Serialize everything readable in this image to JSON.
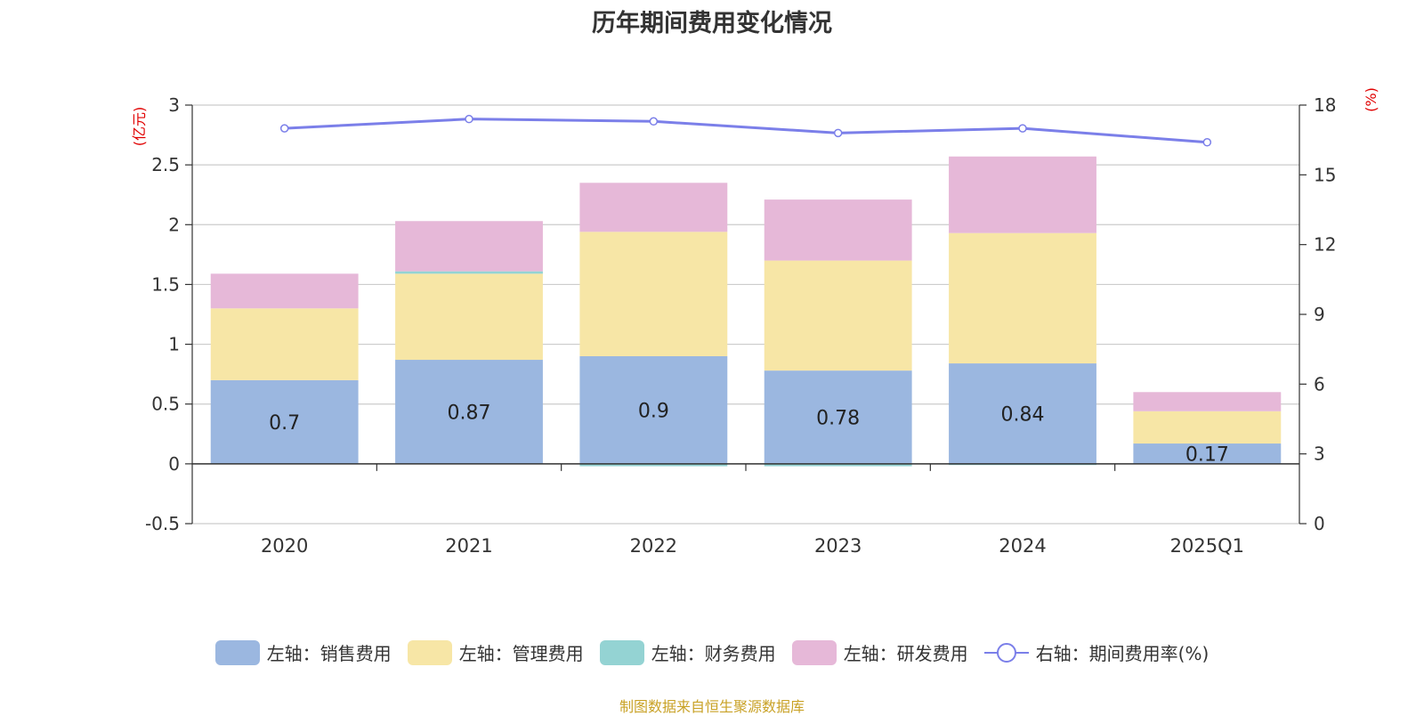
{
  "chart_data": {
    "type": "bar",
    "title": "历年期间费用变化情况",
    "categories": [
      "2020",
      "2021",
      "2022",
      "2023",
      "2024",
      "2025Q1"
    ],
    "y_left": {
      "unit_label": "(亿元)",
      "ylim": [
        -0.5,
        3
      ],
      "ticks": [
        "3",
        "2.5",
        "2",
        "1.5",
        "1",
        "0.5",
        "0",
        "-0.5"
      ],
      "tick_values": [
        3,
        2.5,
        2,
        1.5,
        1,
        0.5,
        0,
        -0.5
      ]
    },
    "y_right": {
      "unit_label": "(%)",
      "ylim": [
        0,
        18
      ],
      "ticks": [
        "18",
        "15",
        "12",
        "9",
        "6",
        "3",
        "0"
      ],
      "tick_values": [
        18,
        15,
        12,
        9,
        6,
        3,
        0
      ]
    },
    "grid": true,
    "legend_position": "bottom",
    "series": [
      {
        "name": "左轴：销售费用",
        "kind": "bar",
        "axis": "left",
        "color": "#9bb7e0",
        "values": [
          0.7,
          0.87,
          0.9,
          0.78,
          0.84,
          0.17
        ],
        "data_labels": [
          "0.7",
          "0.87",
          "0.9",
          "0.78",
          "0.84",
          "0.17"
        ]
      },
      {
        "name": "左轴：管理费用",
        "kind": "bar",
        "axis": "left",
        "color": "#f7e6a6",
        "values": [
          0.6,
          0.72,
          1.04,
          0.92,
          1.09,
          0.27
        ]
      },
      {
        "name": "左轴：财务费用",
        "kind": "bar",
        "axis": "left",
        "color": "#94d3d3",
        "values": [
          0.0,
          0.02,
          -0.02,
          -0.02,
          -0.01,
          0.0
        ]
      },
      {
        "name": "左轴：研发费用",
        "kind": "bar",
        "axis": "left",
        "color": "#e6b8d8",
        "values": [
          0.29,
          0.42,
          0.41,
          0.51,
          0.64,
          0.16
        ]
      },
      {
        "name": "右轴：期间费用率(%)",
        "kind": "line",
        "axis": "right",
        "color": "#7b7fe9",
        "values": [
          17.0,
          17.4,
          17.3,
          16.8,
          17.0,
          16.4
        ]
      }
    ]
  },
  "source_note": "制图数据来自恒生聚源数据库"
}
